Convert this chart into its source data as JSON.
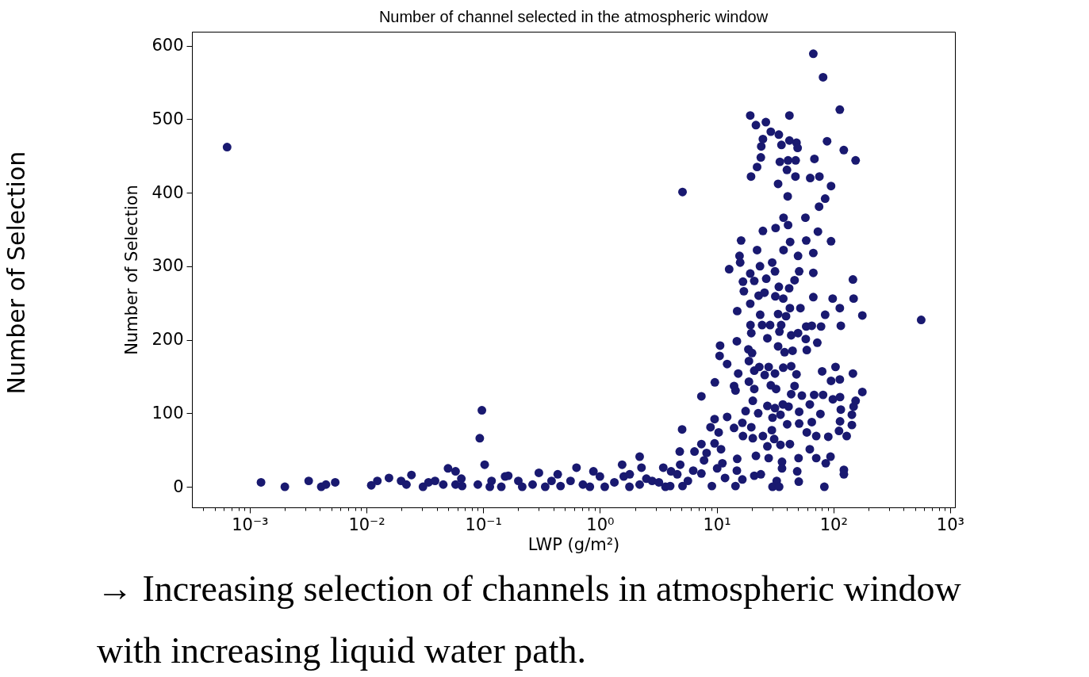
{
  "chart_data": {
    "type": "scatter",
    "title": "Number of channel selected in the atmospheric window",
    "xlabel": "LWP (g/m²)",
    "ylabel": "Number of Selection",
    "log": "x",
    "marker": "circle",
    "color": "#191970",
    "xlim": [
      0.00032,
      1100
    ],
    "ylim": [
      -28,
      619
    ],
    "xticks": [
      {
        "value": 0.0004,
        "label": null
      },
      {
        "value": 0.0005,
        "label": null
      },
      {
        "value": 0.0006,
        "label": null
      },
      {
        "value": 0.0007,
        "label": null
      },
      {
        "value": 0.0008,
        "label": null
      },
      {
        "value": 0.0009,
        "label": null
      },
      {
        "value": 0.001,
        "label": "10⁻³"
      },
      {
        "value": 0.002,
        "label": null
      },
      {
        "value": 0.003,
        "label": null
      },
      {
        "value": 0.004,
        "label": null
      },
      {
        "value": 0.005,
        "label": null
      },
      {
        "value": 0.006,
        "label": null
      },
      {
        "value": 0.007,
        "label": null
      },
      {
        "value": 0.008,
        "label": null
      },
      {
        "value": 0.009,
        "label": null
      },
      {
        "value": 0.01,
        "label": "10⁻²"
      },
      {
        "value": 0.02,
        "label": null
      },
      {
        "value": 0.03,
        "label": null
      },
      {
        "value": 0.04,
        "label": null
      },
      {
        "value": 0.05,
        "label": null
      },
      {
        "value": 0.06,
        "label": null
      },
      {
        "value": 0.07,
        "label": null
      },
      {
        "value": 0.08,
        "label": null
      },
      {
        "value": 0.09,
        "label": null
      },
      {
        "value": 0.1,
        "label": "10⁻¹"
      },
      {
        "value": 0.2,
        "label": null
      },
      {
        "value": 0.3,
        "label": null
      },
      {
        "value": 0.4,
        "label": null
      },
      {
        "value": 0.5,
        "label": null
      },
      {
        "value": 0.6,
        "label": null
      },
      {
        "value": 0.7,
        "label": null
      },
      {
        "value": 0.8,
        "label": null
      },
      {
        "value": 0.9,
        "label": null
      },
      {
        "value": 1,
        "label": "10⁰"
      },
      {
        "value": 2,
        "label": null
      },
      {
        "value": 3,
        "label": null
      },
      {
        "value": 4,
        "label": null
      },
      {
        "value": 5,
        "label": null
      },
      {
        "value": 6,
        "label": null
      },
      {
        "value": 7,
        "label": null
      },
      {
        "value": 8,
        "label": null
      },
      {
        "value": 9,
        "label": null
      },
      {
        "value": 10,
        "label": "10¹"
      },
      {
        "value": 20,
        "label": null
      },
      {
        "value": 30,
        "label": null
      },
      {
        "value": 40,
        "label": null
      },
      {
        "value": 50,
        "label": null
      },
      {
        "value": 60,
        "label": null
      },
      {
        "value": 70,
        "label": null
      },
      {
        "value": 80,
        "label": null
      },
      {
        "value": 90,
        "label": null
      },
      {
        "value": 100,
        "label": "10²"
      },
      {
        "value": 200,
        "label": null
      },
      {
        "value": 300,
        "label": null
      },
      {
        "value": 400,
        "label": null
      },
      {
        "value": 500,
        "label": null
      },
      {
        "value": 600,
        "label": null
      },
      {
        "value": 700,
        "label": null
      },
      {
        "value": 800,
        "label": null
      },
      {
        "value": 900,
        "label": null
      },
      {
        "value": 1000,
        "label": "10³"
      }
    ],
    "yticks": [
      0,
      100,
      200,
      300,
      400,
      500,
      600
    ],
    "annotations": [
      "Number of Selection",
      "→ Increasing selection of channels in atmospheric window with increasing liquid water path."
    ],
    "x": [
      0.00064,
      0.00125,
      0.002,
      0.0032,
      0.0041,
      0.0045,
      0.0054,
      0.011,
      0.0124,
      0.0156,
      0.0198,
      0.022,
      0.0243,
      0.0305,
      0.034,
      0.0387,
      0.0455,
      0.05,
      0.058,
      0.058,
      0.065,
      0.066,
      0.09,
      0.0935,
      0.0975,
      0.103,
      0.114,
      0.118,
      0.143,
      0.154,
      0.164,
      0.2,
      0.216,
      0.265,
      0.3,
      0.34,
      0.385,
      0.435,
      0.46,
      0.56,
      0.63,
      0.715,
      0.82,
      0.88,
      1.0,
      1.1,
      1.33,
      1.55,
      1.6,
      1.79,
      1.8,
      2.19,
      2.19,
      2.27,
      2.5,
      2.8,
      3.2,
      3.49,
      3.64,
      4.0,
      4.07,
      4.6,
      4.83,
      4.87,
      5.06,
      5.1,
      5.1,
      5.67,
      6.3,
      6.46,
      7.4,
      7.4,
      7.4,
      7.8,
      8.2,
      8.86,
      9.1,
      9.6,
      9.6,
      9.65,
      10.1,
      10.4,
      10.6,
      10.7,
      10.9,
      11.2,
      11.8,
      12.3,
      12.3,
      12.8,
      14.1,
      14.1,
      14.5,
      14.5,
      14.9,
      14.9,
      15,
      15,
      15.3,
      15.7,
      15.9,
      16.2,
      16.6,
      16.6,
      16.8,
      16.8,
      17.1,
      17.7,
      18.7,
      18.9,
      18.9,
      19.4,
      19.4,
      19.4,
      19.5,
      19.7,
      19.8,
      19.8,
      20.1,
      20.4,
      20.4,
      21,
      21,
      21,
      21,
      21.7,
      21.7,
      22.2,
      22.2,
      22.7,
      22.9,
      23.2,
      23.5,
      23.6,
      23.9,
      23.9,
      24.1,
      24.5,
      24.9,
      24.9,
      24.9,
      25.7,
      25.8,
      26.4,
      26.6,
      27.2,
      27.2,
      27.2,
      27.9,
      27.9,
      28.7,
      29.1,
      29.1,
      29.7,
      29.9,
      30.1,
      30.1,
      31.1,
      31.6,
      31.6,
      31.6,
      31.8,
      32,
      32.3,
      32.7,
      33.6,
      33.6,
      33.6,
      34.1,
      34.1,
      34.3,
      34.5,
      34.8,
      35.2,
      35.2,
      35.7,
      35.9,
      36.3,
      36.3,
      36.9,
      37.2,
      37.2,
      37.4,
      37.4,
      38.2,
      39.3,
      40,
      40.2,
      40.6,
      40.9,
      40.9,
      41.3,
      41.8,
      42,
      42,
      42.4,
      42.4,
      42.6,
      43.5,
      43.5,
      43.5,
      44.7,
      46.5,
      46.5,
      47.3,
      47.5,
      48.3,
      48.3,
      49,
      49.4,
      49.8,
      49.8,
      50.3,
      50.5,
      50.9,
      50.9,
      50.9,
      52.2,
      53.7,
      57.6,
      58,
      58.5,
      58.5,
      59.2,
      59.2,
      62.8,
      62.8,
      63.3,
      65.3,
      65.3,
      67.3,
      67.3,
      67.3,
      67.3,
      68.4,
      68.8,
      71.3,
      71.3,
      72.8,
      73.7,
      75.4,
      75.9,
      77.4,
      78.4,
      80.1,
      81.6,
      81.6,
      83.7,
      85,
      85,
      86,
      88.3,
      90.4,
      94.5,
      95.5,
      95.5,
      95.5,
      98.6,
      99,
      104.3,
      111.7,
      113.5,
      113.5,
      113.5,
      114,
      114,
      115.8,
      115.8,
      122.8,
      123,
      123,
      130,
      144,
      144,
      147,
      147,
      149,
      149,
      155,
      155,
      177,
      177,
      565
    ],
    "values": [
      462,
      6,
      0,
      8,
      0,
      3,
      6,
      2,
      8,
      12,
      8,
      3,
      16,
      0,
      6,
      8,
      3,
      25,
      21,
      3,
      11,
      1,
      3,
      66,
      104,
      30,
      0,
      8,
      0,
      14,
      15,
      8,
      0,
      3,
      19,
      0,
      8,
      17,
      1,
      8,
      26,
      3,
      0,
      21,
      14,
      0,
      6,
      30,
      14,
      0,
      17,
      41,
      3,
      26,
      11,
      8,
      6,
      26,
      0,
      1,
      21,
      17,
      48,
      30,
      78,
      401,
      1,
      8,
      22,
      48,
      123,
      58,
      18,
      36,
      46,
      81,
      1,
      92,
      59,
      142,
      25,
      74,
      178,
      192,
      51,
      32,
      12,
      167,
      95,
      296,
      137,
      80,
      131,
      1,
      198,
      22,
      239,
      38,
      154,
      314,
      305,
      335,
      87,
      10,
      279,
      69,
      266,
      103,
      187,
      143,
      171,
      505,
      290,
      249,
      220,
      422,
      209,
      81,
      182,
      117,
      66,
      280,
      158,
      133,
      15,
      492,
      42,
      435,
      322,
      100,
      260,
      163,
      300,
      234,
      448,
      17,
      463,
      220,
      473,
      348,
      69,
      264,
      152,
      496,
      283,
      202,
      110,
      55,
      163,
      39,
      220,
      483,
      138,
      77,
      305,
      94,
      0,
      65,
      293,
      154,
      107,
      259,
      352,
      133,
      8,
      412,
      235,
      191,
      479,
      272,
      0,
      211,
      442,
      98,
      57,
      220,
      465,
      34,
      25,
      112,
      256,
      162,
      366,
      322,
      183,
      232,
      431,
      85,
      395,
      444,
      356,
      109,
      270,
      505,
      471,
      243,
      58,
      333,
      206,
      164,
      126,
      185,
      281,
      137,
      422,
      444,
      468,
      153,
      21,
      461,
      314,
      209,
      39,
      7,
      293,
      102,
      86,
      243,
      124,
      366,
      201,
      335,
      218,
      186,
      74,
      112,
      51,
      420,
      219,
      88,
      589,
      318,
      291,
      258,
      125,
      446,
      69,
      39,
      196,
      347,
      381,
      422,
      99,
      218,
      157,
      557,
      125,
      0,
      392,
      234,
      32,
      470,
      68,
      41,
      409,
      334,
      144,
      256,
      119,
      163,
      76,
      513,
      243,
      146,
      122,
      89,
      219,
      105,
      458,
      23,
      17,
      69,
      98,
      84,
      282,
      154,
      256,
      109,
      444,
      117,
      233,
      129,
      227
    ]
  }
}
